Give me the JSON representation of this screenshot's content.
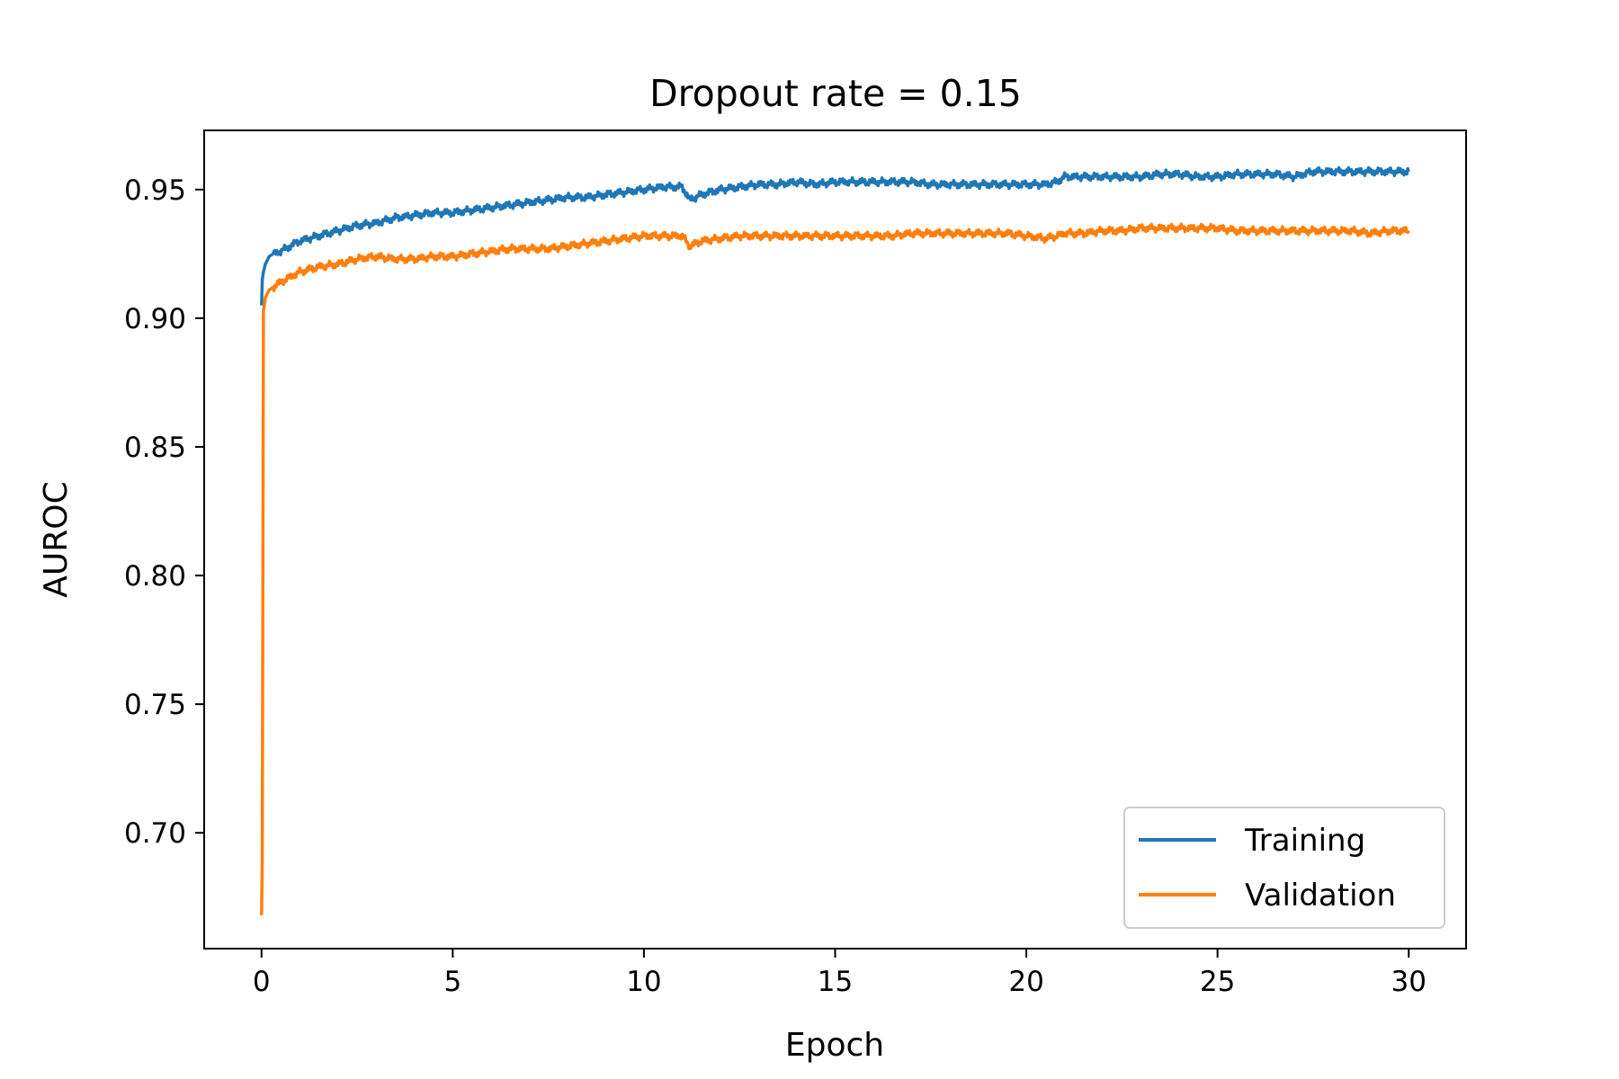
{
  "chart_data": {
    "type": "line",
    "title": "Dropout rate = 0.15",
    "xlabel": "Epoch",
    "ylabel": "AUROC",
    "xlim": [
      -1.5,
      31.5
    ],
    "ylim": [
      0.655,
      0.973
    ],
    "xticks": [
      0,
      5,
      10,
      15,
      20,
      25,
      30
    ],
    "xtick_labels": [
      "0",
      "5",
      "10",
      "15",
      "20",
      "25",
      "30"
    ],
    "yticks": [
      0.7,
      0.75,
      0.8,
      0.85,
      0.9,
      0.95
    ],
    "ytick_labels": [
      "0.70",
      "0.75",
      "0.80",
      "0.85",
      "0.90",
      "0.95"
    ],
    "grid": false,
    "legend_position": "lower-right",
    "series": [
      {
        "name": "Training",
        "color": "#1f77b4",
        "x": [
          0,
          0.02,
          0.05,
          0.1,
          0.2,
          0.3,
          0.5,
          0.75,
          1,
          1.5,
          2,
          2.5,
          3,
          3.5,
          4,
          4.5,
          5,
          5.5,
          6,
          6.5,
          7,
          7.5,
          8,
          8.5,
          9,
          9.5,
          10,
          10.5,
          11,
          11.2,
          11.5,
          12,
          12.5,
          13,
          13.5,
          14,
          14.5,
          15,
          15.5,
          16,
          16.5,
          17,
          17.5,
          18,
          18.5,
          19,
          19.5,
          20,
          20.5,
          20.8,
          21,
          21.5,
          22,
          22.5,
          23,
          23.5,
          24,
          24.5,
          25,
          25.5,
          26,
          26.5,
          27,
          27.5,
          28,
          28.5,
          29,
          29.5,
          30
        ],
        "y": [
          0.905,
          0.915,
          0.918,
          0.921,
          0.924,
          0.925,
          0.926,
          0.928,
          0.93,
          0.932,
          0.934,
          0.936,
          0.937,
          0.939,
          0.94,
          0.941,
          0.941,
          0.942,
          0.943,
          0.944,
          0.945,
          0.946,
          0.947,
          0.947,
          0.948,
          0.949,
          0.95,
          0.951,
          0.951,
          0.946,
          0.948,
          0.95,
          0.951,
          0.952,
          0.952,
          0.953,
          0.952,
          0.953,
          0.953,
          0.953,
          0.953,
          0.953,
          0.952,
          0.952,
          0.952,
          0.952,
          0.952,
          0.952,
          0.952,
          0.953,
          0.955,
          0.955,
          0.955,
          0.955,
          0.955,
          0.956,
          0.956,
          0.955,
          0.955,
          0.956,
          0.956,
          0.956,
          0.955,
          0.957,
          0.957,
          0.957,
          0.957,
          0.957,
          0.957
        ]
      },
      {
        "name": "Validation",
        "color": "#ff7f0e",
        "x": [
          0,
          0.02,
          0.05,
          0.1,
          0.2,
          0.3,
          0.5,
          0.75,
          1,
          1.5,
          2,
          2.5,
          3,
          3.5,
          4,
          4.5,
          5,
          5.5,
          6,
          6.5,
          7,
          7.5,
          8,
          8.5,
          9,
          9.5,
          10,
          10.5,
          11,
          11.2,
          11.5,
          12,
          12.5,
          13,
          13.5,
          14,
          14.5,
          15,
          15.5,
          16,
          16.5,
          17,
          17.5,
          18,
          18.5,
          19,
          19.5,
          20,
          20.5,
          20.8,
          21,
          21.5,
          22,
          22.5,
          23,
          23.5,
          24,
          24.5,
          25,
          25.5,
          26,
          26.5,
          27,
          27.5,
          28,
          28.5,
          29,
          29.5,
          30
        ],
        "y": [
          0.668,
          0.69,
          0.903,
          0.908,
          0.911,
          0.912,
          0.914,
          0.916,
          0.918,
          0.92,
          0.921,
          0.923,
          0.924,
          0.923,
          0.923,
          0.924,
          0.924,
          0.925,
          0.926,
          0.927,
          0.927,
          0.927,
          0.928,
          0.929,
          0.93,
          0.931,
          0.932,
          0.932,
          0.932,
          0.928,
          0.93,
          0.931,
          0.932,
          0.932,
          0.932,
          0.932,
          0.932,
          0.932,
          0.932,
          0.932,
          0.932,
          0.933,
          0.933,
          0.933,
          0.933,
          0.933,
          0.933,
          0.932,
          0.931,
          0.932,
          0.933,
          0.933,
          0.934,
          0.934,
          0.935,
          0.935,
          0.935,
          0.935,
          0.935,
          0.934,
          0.934,
          0.934,
          0.934,
          0.934,
          0.934,
          0.934,
          0.933,
          0.934,
          0.934
        ]
      }
    ]
  }
}
